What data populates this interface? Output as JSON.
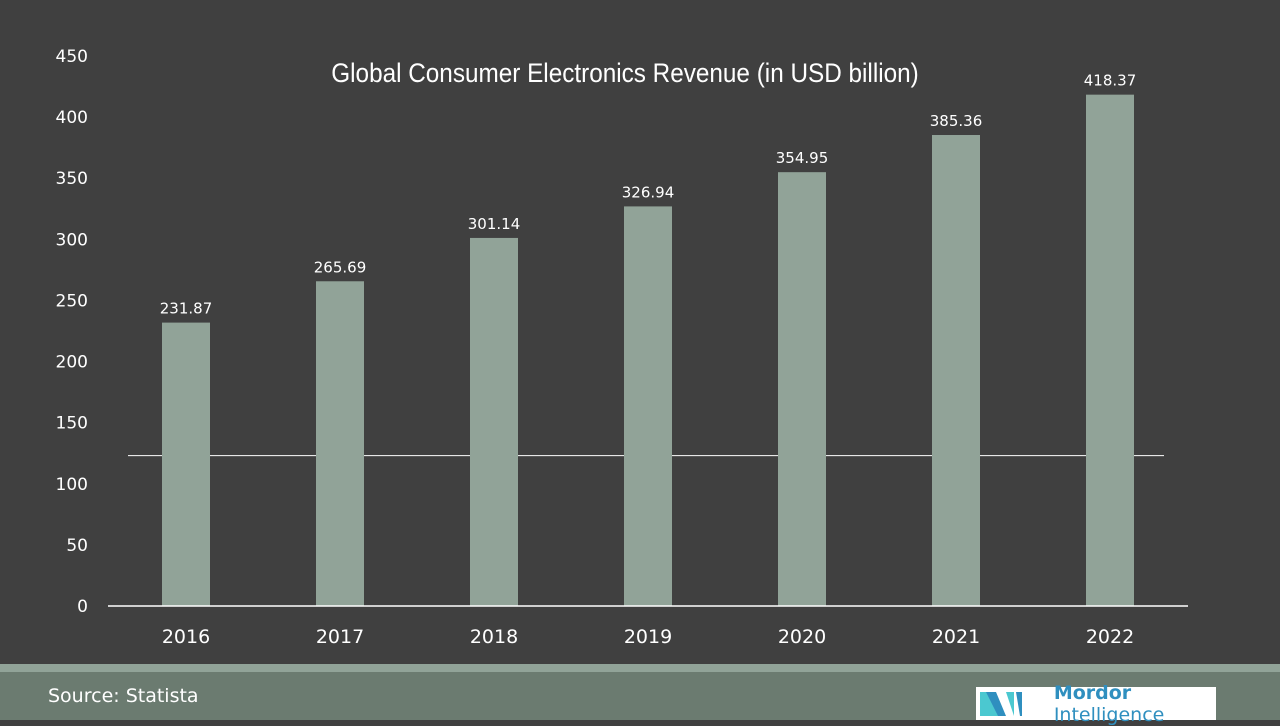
{
  "chart_data": {
    "type": "bar",
    "title": "Global Consumer Electronics Revenue (in USD billion)",
    "categories": [
      "2016",
      "2017",
      "2018",
      "2019",
      "2020",
      "2021",
      "2022"
    ],
    "values": [
      231.87,
      265.69,
      301.14,
      326.94,
      354.95,
      385.36,
      418.37
    ],
    "data_labels": [
      "231.87",
      "265.69",
      "301.14",
      "326.94",
      "354.95",
      "385.36",
      "418.37"
    ],
    "xlabel": "",
    "ylabel": "",
    "ylim": [
      0,
      450
    ],
    "yticks": [
      "0",
      "50",
      "100",
      "150",
      "200",
      "250",
      "300",
      "350",
      "400",
      "450"
    ],
    "grid": false,
    "reference_line_value": 123,
    "bar_color": "#91a398",
    "background_color": "#404040"
  },
  "footer": {
    "source": "Source: Statista",
    "logo_bold": "Mordor",
    "logo_rest": "Intelligence"
  }
}
